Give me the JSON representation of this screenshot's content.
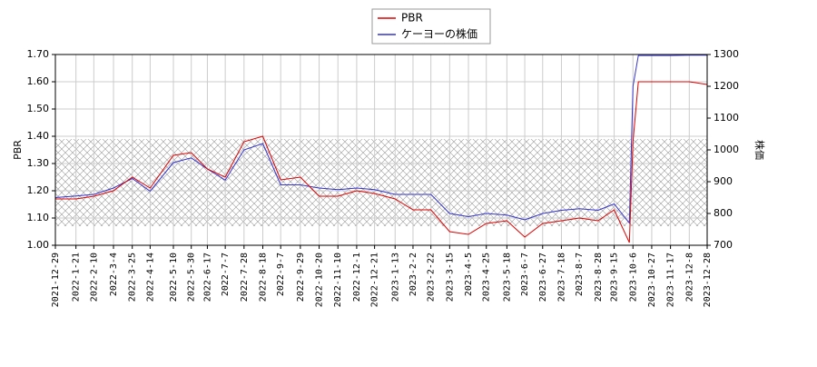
{
  "chart_data": {
    "type": "line",
    "x": [
      "2021-12-29",
      "2022-1-21",
      "2022-2-10",
      "2022-3-4",
      "2022-3-25",
      "2022-4-14",
      "2022-5-10",
      "2022-5-30",
      "2022-6-17",
      "2022-7-7",
      "2022-7-28",
      "2022-8-18",
      "2022-9-7",
      "2022-9-29",
      "2022-10-20",
      "2022-11-10",
      "2022-12-1",
      "2022-12-21",
      "2023-1-13",
      "2023-2-2",
      "2023-2-22",
      "2023-3-15",
      "2023-4-5",
      "2023-4-25",
      "2023-5-18",
      "2023-6-7",
      "2023-6-27",
      "2023-7-18",
      "2023-8-7",
      "2023-8-28",
      "2023-9-15",
      "2023-10-2",
      "2023-10-6",
      "2023-10-12",
      "2023-10-27",
      "2023-11-17",
      "2023-12-8",
      "2023-12-28"
    ],
    "series": [
      {
        "name": "PBR",
        "color": "#dd0000",
        "values": [
          1.17,
          1.17,
          1.18,
          1.2,
          1.25,
          1.21,
          1.33,
          1.34,
          1.28,
          1.25,
          1.38,
          1.4,
          1.24,
          1.25,
          1.18,
          1.18,
          1.2,
          1.19,
          1.17,
          1.13,
          1.13,
          1.05,
          1.04,
          1.08,
          1.09,
          1.03,
          1.08,
          1.09,
          1.1,
          1.09,
          1.13,
          1.01,
          1.38,
          1.6,
          1.6,
          1.6,
          1.6,
          1.59
        ]
      },
      {
        "name": "ケーヨーの株価",
        "color": "#3333cc",
        "axis": "y2",
        "values": [
          850,
          855,
          860,
          880,
          910,
          870,
          960,
          975,
          940,
          905,
          1000,
          1020,
          890,
          890,
          880,
          875,
          880,
          875,
          860,
          860,
          860,
          800,
          790,
          800,
          795,
          780,
          800,
          810,
          815,
          810,
          830,
          770,
          1200,
          1297,
          1297,
          1297,
          1298,
          1298
        ]
      }
    ],
    "ylabel": "PBR",
    "y2label": "株価",
    "ylim": [
      1.0,
      1.7
    ],
    "yticks": [
      {
        "value": 1.0,
        "label": "1.00"
      },
      {
        "value": 1.1,
        "label": "1.10"
      },
      {
        "value": 1.2,
        "label": "1.20"
      },
      {
        "value": 1.3,
        "label": "1.30"
      },
      {
        "value": 1.4,
        "label": "1.40"
      },
      {
        "value": 1.5,
        "label": "1.50"
      },
      {
        "value": 1.6,
        "label": "1.60"
      },
      {
        "value": 1.7,
        "label": "1.70"
      }
    ],
    "y2lim": [
      700,
      1300
    ],
    "y2ticks": [
      700,
      800,
      900,
      1000,
      1100,
      1200,
      1300
    ],
    "xticks": [
      "2021-12-29",
      "2022-1-21",
      "2022-2-10",
      "2022-3-4",
      "2022-3-25",
      "2022-4-14",
      "2022-5-10",
      "2022-5-30",
      "2022-6-17",
      "2022-7-7",
      "2022-7-28",
      "2022-8-18",
      "2022-9-7",
      "2022-9-29",
      "2022-10-20",
      "2022-11-10",
      "2022-12-1",
      "2022-12-21",
      "2023-1-13",
      "2023-2-2",
      "2023-2-22",
      "2023-3-15",
      "2023-4-5",
      "2023-4-25",
      "2023-5-18",
      "2023-6-7",
      "2023-6-27",
      "2023-7-18",
      "2023-8-7",
      "2023-8-28",
      "2023-9-15",
      "2023-10-6",
      "2023-10-27",
      "2023-11-17",
      "2023-12-8",
      "2023-12-28"
    ],
    "shaded_range": [
      1.07,
      1.39
    ],
    "grid": true
  }
}
